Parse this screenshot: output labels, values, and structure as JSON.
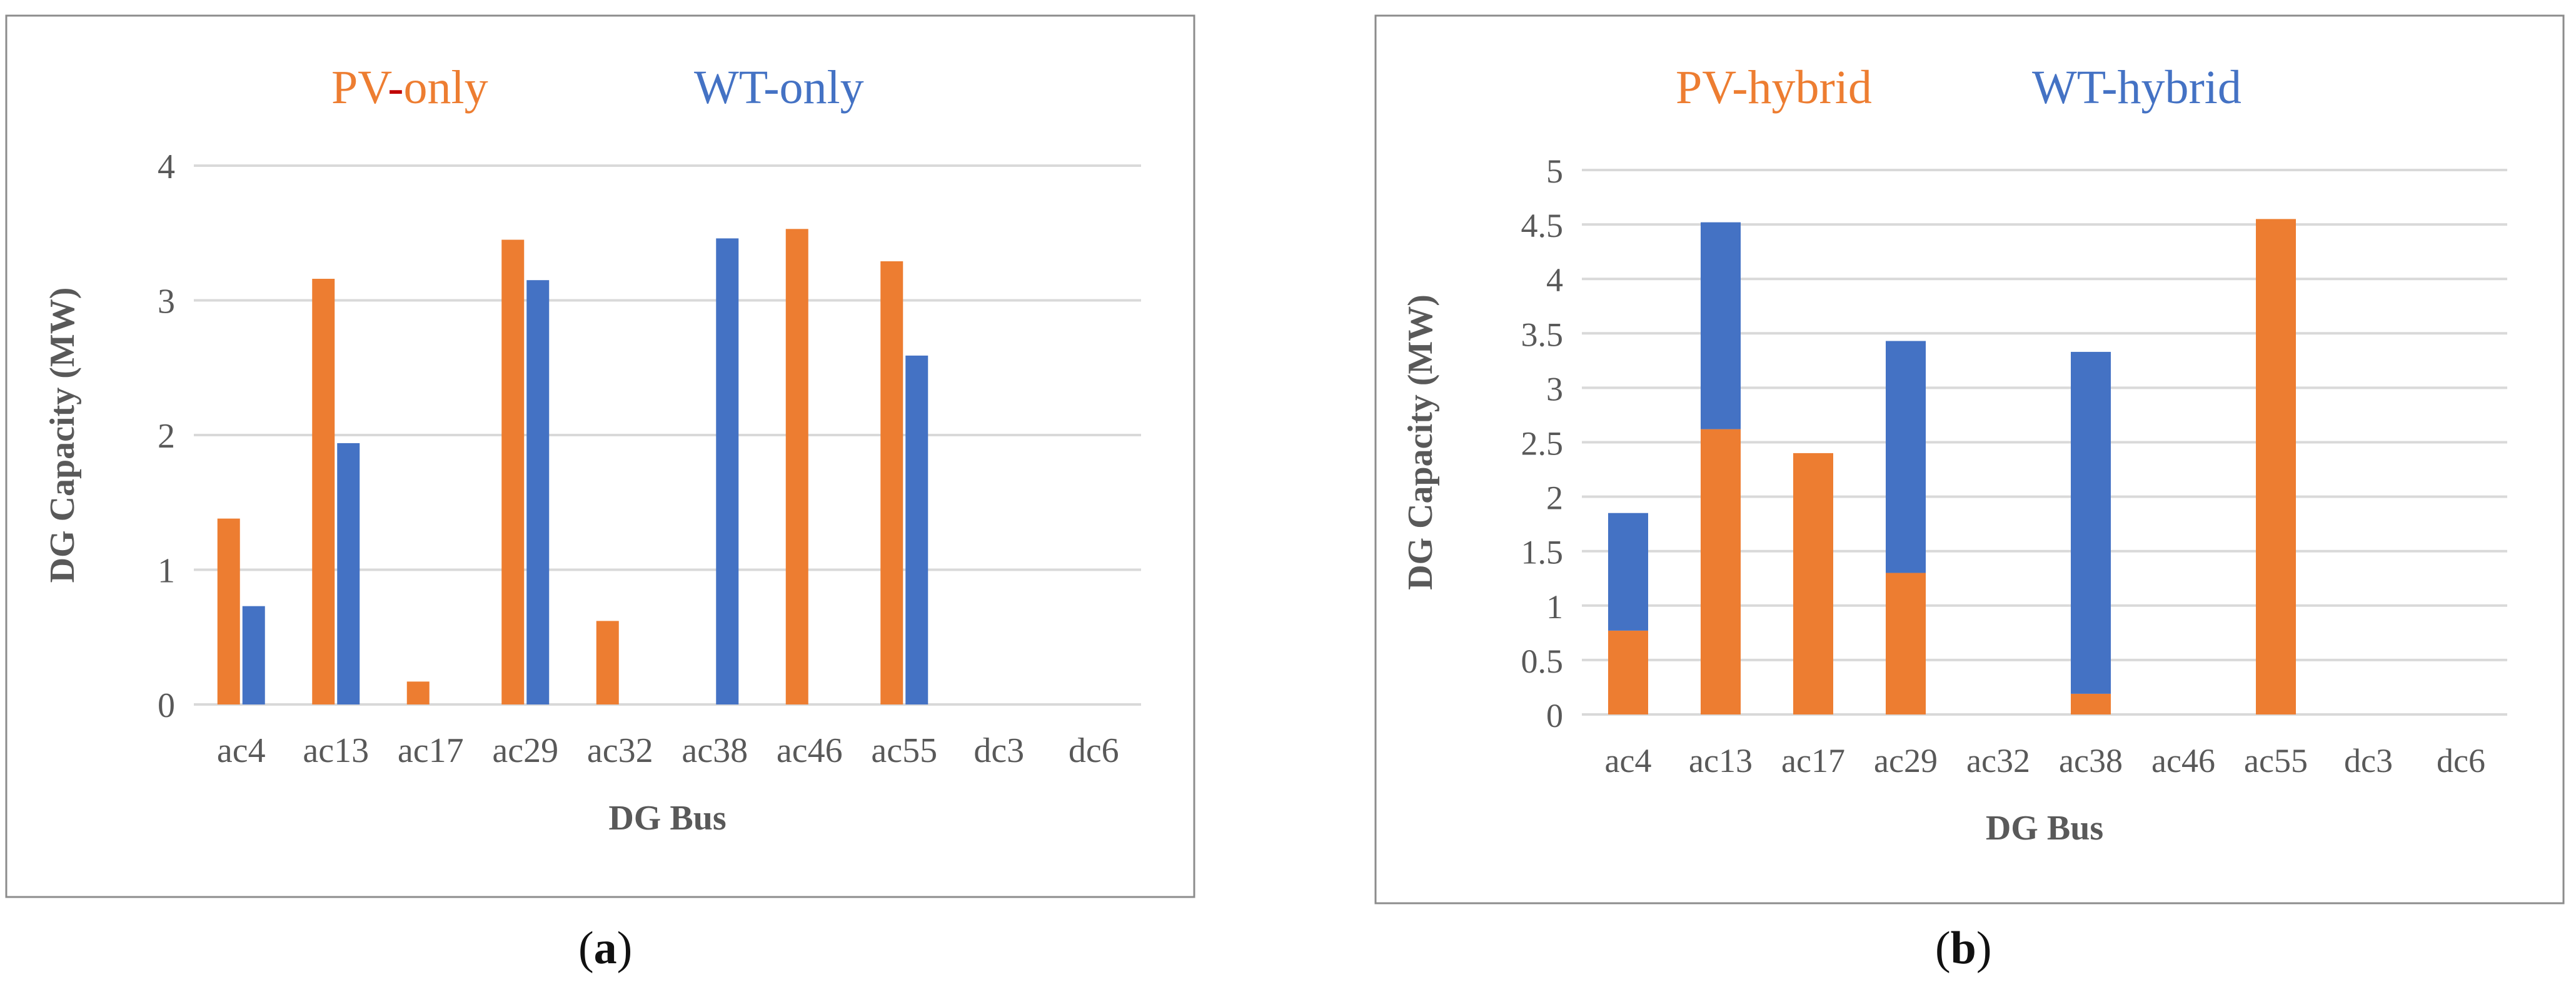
{
  "colors": {
    "pv": "#ED7D31",
    "wt": "#4472C4",
    "minus": "#C00000",
    "grid": "#D9D9D9",
    "axis_text": "#595959",
    "frame": "#8C8C8C"
  },
  "chart_data": [
    {
      "type": "bar",
      "legend": {
        "items": [
          {
            "prefix": "PV",
            "dash": "-",
            "suffix": "only",
            "color": "#ED7D31"
          },
          {
            "prefix": "WT",
            "dash": "-",
            "suffix": "only",
            "color": "#4472C4"
          }
        ],
        "placement": "top"
      },
      "xlabel": "DG Bus",
      "ylabel": "DG Capacity (MW)",
      "ylim": [
        0,
        4
      ],
      "yticks": [
        "0",
        "1",
        "2",
        "3",
        "4"
      ],
      "grid": true,
      "categories": [
        "ac4",
        "ac13",
        "ac17",
        "ac29",
        "ac32",
        "ac38",
        "ac46",
        "ac55",
        "dc3",
        "dc6"
      ],
      "series": [
        {
          "name": "PV-only",
          "values": [
            1.38,
            3.16,
            0.17,
            3.45,
            0.62,
            0,
            3.53,
            3.29,
            0,
            0
          ]
        },
        {
          "name": "WT-only",
          "values": [
            0.73,
            1.94,
            0,
            3.15,
            0,
            3.46,
            0,
            2.59,
            0,
            0
          ]
        }
      ],
      "caption": "a"
    },
    {
      "type": "bar",
      "stacked": true,
      "legend": {
        "items": [
          {
            "prefix": "PV",
            "dash": "-",
            "suffix": "hybrid",
            "color": "#ED7D31"
          },
          {
            "prefix": "WT",
            "dash": "-",
            "suffix": "hybrid",
            "color": "#4472C4"
          }
        ],
        "placement": "top"
      },
      "xlabel": "DG Bus",
      "ylabel": "DG Capacity (MW)",
      "ylim": [
        0,
        5
      ],
      "yticks": [
        "0",
        "0.5",
        "1",
        "1.5",
        "2",
        "2.5",
        "3",
        "3.5",
        "4",
        "4.5",
        "5"
      ],
      "grid": true,
      "categories": [
        "ac4",
        "ac13",
        "ac17",
        "ac29",
        "ac32",
        "ac38",
        "ac46",
        "ac55",
        "dc3",
        "dc6"
      ],
      "series": [
        {
          "name": "PV-hybrid",
          "values": [
            0.77,
            2.62,
            2.4,
            1.3,
            0,
            0.19,
            0,
            4.55,
            0,
            0
          ]
        },
        {
          "name": "WT-hybrid",
          "values": [
            1.08,
            1.9,
            0,
            2.13,
            0,
            3.14,
            0,
            0,
            0,
            0
          ]
        }
      ],
      "caption": "b"
    }
  ]
}
